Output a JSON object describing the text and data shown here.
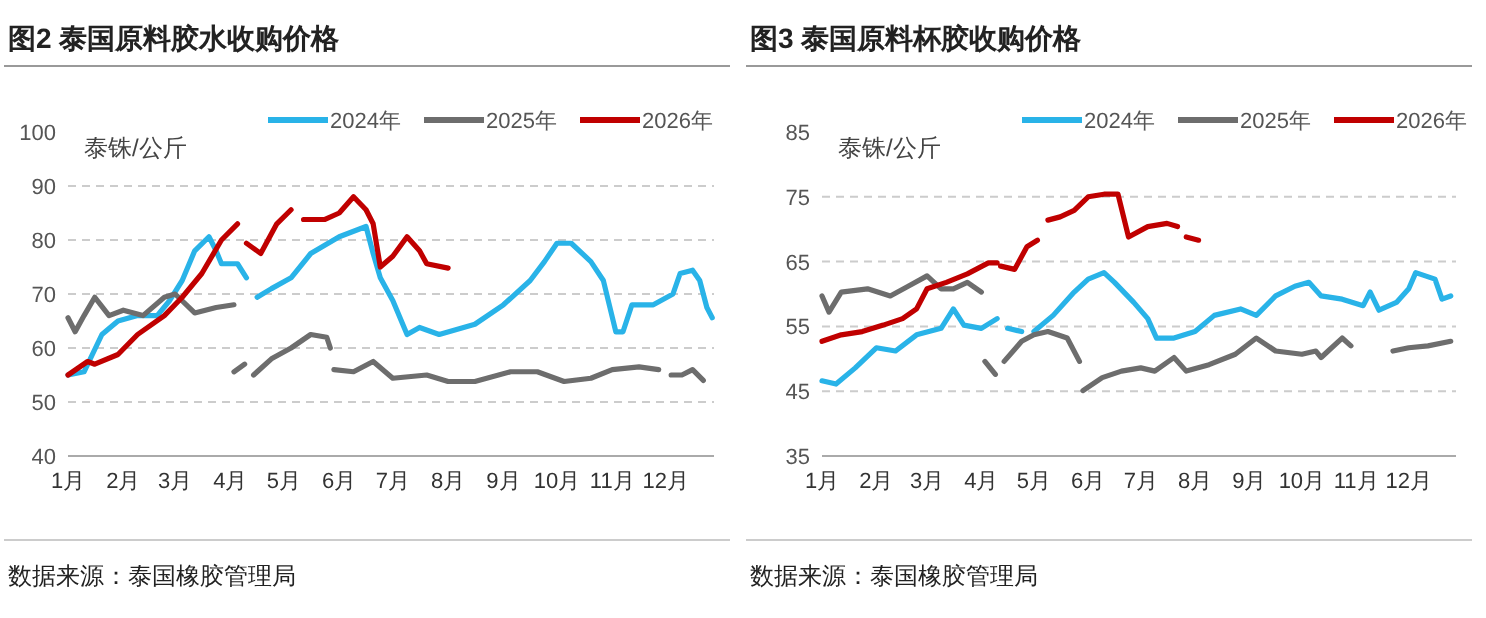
{
  "chart_data": [
    {
      "type": "line",
      "title": "图2 泰国原料胶水收购价格",
      "ylabel": "泰铢/公斤",
      "xlim": [
        "--01-01",
        "--12-28"
      ],
      "ylim": [
        40,
        100
      ],
      "yticks": [
        40,
        50,
        60,
        70,
        80,
        90,
        100
      ],
      "xticks": [
        {
          "value": "--01-01",
          "label": "1月"
        },
        {
          "value": "--02-01",
          "label": "2月"
        },
        {
          "value": "--03-01",
          "label": "3月"
        },
        {
          "value": "--04-01",
          "label": "4月"
        },
        {
          "value": "--05-01",
          "label": "5月"
        },
        {
          "value": "--06-01",
          "label": "6月"
        },
        {
          "value": "--07-01",
          "label": "7月"
        },
        {
          "value": "--08-01",
          "label": "8月"
        },
        {
          "value": "--09-01",
          "label": "9月"
        },
        {
          "value": "--10-01",
          "label": "10月"
        },
        {
          "value": "--11-01",
          "label": "11月"
        },
        {
          "value": "--12-01",
          "label": "12月"
        }
      ],
      "grid": "y",
      "legend": "top",
      "annotations": [
        "数据来源：泰国橡胶管理局"
      ],
      "series": [
        {
          "name": "2024年",
          "color": "#29b3e8",
          "x": [
            "--01-01",
            "--01-10",
            "--01-20",
            "--01-29",
            "--02-09",
            "--02-20",
            "--02-27",
            "--03-05",
            "--03-12",
            "--03-20",
            "--03-24",
            "--03-27",
            "--04-05",
            "--04-10",
            null,
            "--04-16",
            "--04-24",
            "--05-05",
            "--05-16",
            "--06-01",
            "--06-16",
            "--06-20",
            "--06-24",
            "--07-01",
            "--07-09",
            "--07-16",
            "--07-27",
            "--08-16",
            "--09-01",
            "--09-16",
            "--09-24",
            "--10-01",
            "--10-09",
            "--10-20",
            "--10-27",
            "--11-03",
            "--11-07",
            "--11-12",
            "--11-24",
            "--12-05",
            "--12-09",
            "--12-16",
            "--12-20",
            "--12-24",
            "--12-27"
          ],
          "values": [
            55,
            55.6,
            62.5,
            65,
            66,
            66,
            68.8,
            72.5,
            78,
            80.6,
            78,
            75.6,
            75.6,
            73,
            null,
            69.4,
            71,
            73,
            77.5,
            80.6,
            82.5,
            77.5,
            73,
            68.8,
            62.5,
            63.8,
            62.5,
            64.4,
            68,
            72.5,
            76,
            79.4,
            79.4,
            76,
            72.5,
            63,
            63,
            68,
            68,
            70,
            73.8,
            74.4,
            72.5,
            67.5,
            65.6
          ]
        },
        {
          "name": "2025年",
          "color": "#6d6d6d",
          "x": [
            "--01-01",
            "--01-05",
            "--01-10",
            "--01-16",
            "--01-24",
            "--02-01",
            "--02-12",
            "--02-24",
            "--03-01",
            "--03-12",
            "--03-24",
            "--04-03",
            null,
            "--04-03",
            "--04-09",
            null,
            "--04-14",
            "--04-24",
            "--05-05",
            "--05-16",
            "--05-25",
            "--05-27",
            null,
            "--05-29",
            "--06-09",
            "--06-20",
            "--07-01",
            "--07-20",
            "--08-01",
            "--08-16",
            "--09-05",
            "--09-20",
            "--10-05",
            "--10-20",
            "--11-01",
            "--11-16",
            "--11-27",
            null,
            "--12-04",
            "--12-10",
            "--12-16",
            "--12-22"
          ],
          "values": [
            65.6,
            63,
            66,
            69.4,
            66,
            67,
            66,
            69.4,
            70,
            66.5,
            67.5,
            68,
            null,
            55.6,
            57,
            null,
            55,
            58,
            60,
            62.5,
            62,
            60,
            null,
            56,
            55.6,
            57.5,
            54.4,
            55,
            53.8,
            53.8,
            55.6,
            55.6,
            53.8,
            54.4,
            56,
            56.5,
            56,
            null,
            55,
            55,
            56,
            54
          ]
        },
        {
          "name": "2026年",
          "color": "#c00000",
          "x": [
            "--01-01",
            "--01-12",
            "--01-16",
            "--01-29",
            "--02-09",
            "--02-24",
            "--03-05",
            "--03-16",
            "--03-27",
            "--04-05",
            null,
            "--04-10",
            "--04-18",
            "--04-27",
            "--05-05",
            null,
            "--05-12",
            "--05-24",
            "--06-01",
            "--06-09",
            "--06-16",
            "--06-20",
            "--06-24",
            "--07-01",
            "--07-09",
            "--07-16",
            "--07-20",
            "--08-01"
          ],
          "values": [
            55,
            57.5,
            57,
            58.8,
            62.5,
            66,
            69.4,
            73.8,
            80,
            83,
            null,
            79.4,
            77.5,
            83,
            85.6,
            null,
            83.8,
            83.8,
            85,
            88,
            85.6,
            83,
            75,
            77,
            80.6,
            78,
            75.6,
            74.8
          ]
        }
      ]
    },
    {
      "type": "line",
      "title": "图3 泰国原料杯胶收购价格",
      "ylabel": "泰铢/公斤",
      "xlim": [
        "--01-01",
        "--12-28"
      ],
      "ylim": [
        35,
        85
      ],
      "yticks": [
        35,
        45,
        55,
        65,
        75,
        85
      ],
      "xticks": [
        {
          "value": "--01-01",
          "label": "1月"
        },
        {
          "value": "--02-01",
          "label": "2月"
        },
        {
          "value": "--03-01",
          "label": "3月"
        },
        {
          "value": "--04-01",
          "label": "4月"
        },
        {
          "value": "--05-01",
          "label": "5月"
        },
        {
          "value": "--06-01",
          "label": "6月"
        },
        {
          "value": "--07-01",
          "label": "7月"
        },
        {
          "value": "--08-01",
          "label": "8月"
        },
        {
          "value": "--09-01",
          "label": "9月"
        },
        {
          "value": "--10-01",
          "label": "10月"
        },
        {
          "value": "--11-01",
          "label": "11月"
        },
        {
          "value": "--12-01",
          "label": "12月"
        }
      ],
      "grid": "y",
      "legend": "top",
      "annotations": [
        "数据来源：泰国橡胶管理局"
      ],
      "series": [
        {
          "name": "2024年",
          "color": "#29b3e8",
          "x": [
            "--01-01",
            "--01-09",
            "--01-20",
            "--02-01",
            "--02-12",
            "--02-24",
            "--03-09",
            "--03-16",
            "--03-22",
            "--04-01",
            "--04-10",
            null,
            "--04-16",
            "--04-24",
            null,
            "--05-01",
            "--05-12",
            "--05-24",
            "--06-01",
            "--06-10",
            "--06-16",
            "--06-27",
            "--07-05",
            "--07-10",
            "--07-20",
            "--08-01",
            "--08-12",
            "--08-27",
            "--09-05",
            "--09-16",
            "--09-27",
            "--10-05",
            "--10-12",
            "--10-24",
            "--11-05",
            "--11-09",
            "--11-14",
            "--11-24",
            "--12-01",
            "--12-05",
            "--12-16",
            "--12-20",
            "--12-25"
          ],
          "values": [
            46.6,
            46.1,
            48.6,
            51.7,
            51.2,
            53.7,
            54.7,
            57.7,
            55.2,
            54.7,
            56.2,
            null,
            54.7,
            54.2,
            null,
            54.2,
            56.7,
            60.3,
            62.3,
            63.3,
            61.8,
            58.7,
            56.2,
            53.2,
            53.2,
            54.2,
            56.7,
            57.7,
            56.7,
            59.7,
            61.2,
            61.8,
            59.7,
            59.2,
            58.2,
            60.3,
            57.5,
            58.7,
            60.8,
            63.3,
            62.3,
            59.2,
            59.7
          ]
        },
        {
          "name": "2025年",
          "color": "#6d6d6d",
          "x": [
            "--01-01",
            "--01-05",
            "--01-12",
            "--01-27",
            "--02-09",
            "--02-20",
            "--03-01",
            "--03-09",
            "--03-16",
            "--03-24",
            "--04-01",
            null,
            "--04-03",
            "--04-09",
            null,
            "--04-14",
            "--04-24",
            "--05-01",
            "--05-09",
            "--05-20",
            "--05-27",
            null,
            "--05-29",
            "--06-09",
            "--06-20",
            "--07-01",
            "--07-09",
            "--07-20",
            "--07-27",
            "--08-09",
            "--08-24",
            "--09-05",
            "--09-16",
            "--10-01",
            "--10-09",
            "--10-12",
            "--10-16",
            "--10-24",
            "--10-29",
            null,
            "--11-22",
            "--12-01",
            "--12-12",
            "--12-25"
          ],
          "values": [
            59.7,
            57.2,
            60.3,
            60.8,
            59.7,
            61.3,
            62.8,
            60.8,
            60.8,
            61.8,
            60.3,
            null,
            49.6,
            47.6,
            null,
            49.6,
            52.7,
            53.7,
            54.2,
            53.2,
            49.6,
            null,
            45.1,
            47.1,
            48.1,
            48.6,
            48.1,
            50.2,
            48.1,
            49.1,
            50.7,
            53.2,
            51.2,
            50.7,
            51.2,
            50.2,
            51.2,
            53.2,
            52,
            null,
            51.2,
            51.7,
            52,
            52.7
          ]
        },
        {
          "name": "2026年",
          "color": "#c00000",
          "x": [
            "--01-01",
            "--01-12",
            "--01-24",
            "--02-05",
            "--02-16",
            "--02-24",
            "--03-01",
            "--03-12",
            "--03-24",
            "--04-05",
            "--04-10",
            null,
            "--04-12",
            "--04-20",
            "--04-27",
            "--05-03",
            null,
            "--05-09",
            "--05-16",
            "--05-24",
            "--06-01",
            "--06-10",
            "--06-18",
            "--06-24",
            "--07-05",
            "--07-16",
            "--07-22",
            null,
            "--07-27",
            "--08-03"
          ],
          "values": [
            52.7,
            53.7,
            54.2,
            55.2,
            56.2,
            57.7,
            60.8,
            61.8,
            63.1,
            64.8,
            64.8,
            null,
            64.3,
            63.8,
            67.3,
            68.3,
            null,
            71.4,
            71.9,
            72.9,
            75,
            75.4,
            75.4,
            68.8,
            70.4,
            70.9,
            70.4,
            null,
            68.8,
            68.3
          ]
        }
      ]
    }
  ]
}
